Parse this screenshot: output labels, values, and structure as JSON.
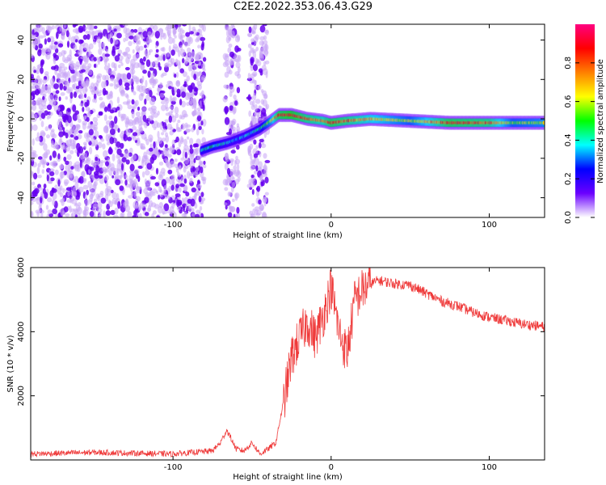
{
  "title": "C2E2.2022.353.06.43.G29",
  "chart_data": [
    {
      "type": "heatmap",
      "xlabel": "Height of straight line (km)",
      "ylabel": "Frequency (Hz)",
      "xlim": [
        -190,
        135
      ],
      "ylim": [
        -50,
        48
      ],
      "xticks": [
        -100,
        0,
        100
      ],
      "yticks": [
        -40,
        -20,
        0,
        20,
        40
      ],
      "grid": false,
      "colorbar": {
        "label": "Normalized spectral amplitude",
        "range": [
          0,
          1
        ],
        "ticks": [
          "0.0",
          "0.2",
          "0.4",
          "0.6",
          "0.8"
        ],
        "colormap": [
          "#ffffff",
          "#6a00ff",
          "#0000ff",
          "#00ffff",
          "#00ff00",
          "#ffff00",
          "#ff8000",
          "#ff0000",
          "#ff0080"
        ]
      },
      "ridge": {
        "x": [
          -82,
          -75,
          -65,
          -55,
          -45,
          -38,
          -33,
          -25,
          -15,
          -5,
          0,
          10,
          25,
          50,
          75,
          100,
          115,
          135
        ],
        "frequency": [
          -16,
          -14,
          -12,
          -9,
          -5,
          -1,
          2,
          2,
          0,
          -1,
          -2,
          -1,
          0,
          -1,
          -2,
          -2,
          -2,
          -2
        ],
        "amplitude": [
          0.4,
          0.45,
          0.35,
          0.35,
          0.4,
          0.6,
          0.85,
          0.9,
          0.8,
          0.75,
          0.85,
          0.8,
          0.7,
          0.55,
          0.85,
          0.8,
          0.55,
          0.6
        ]
      },
      "noise_regions": [
        [
          -190,
          -80
        ],
        [
          -67,
          -58
        ],
        [
          -52,
          -40
        ]
      ]
    },
    {
      "type": "line",
      "xlabel": "Height of straight line (km)",
      "ylabel": "SNR (10 * v/v)",
      "xlim": [
        -190,
        135
      ],
      "ylim": [
        0,
        6000
      ],
      "xticks": [
        -100,
        0,
        100
      ],
      "yticks": [
        2000,
        4000,
        6000
      ],
      "grid": false,
      "series": [
        {
          "color": "#ef3b3b",
          "x": [
            -190,
            -150,
            -100,
            -75,
            -70,
            -66,
            -60,
            -55,
            -50,
            -45,
            -40,
            -35,
            -30,
            -25,
            -20,
            -15,
            -10,
            -5,
            0,
            5,
            10,
            15,
            20,
            25,
            30,
            35,
            40,
            50,
            60,
            70,
            80,
            90,
            100,
            110,
            120,
            135
          ],
          "values": [
            150,
            200,
            150,
            250,
            500,
            900,
            300,
            250,
            500,
            150,
            300,
            500,
            1800,
            3200,
            3800,
            4300,
            3800,
            4500,
            5400,
            4000,
            3300,
            5000,
            5300,
            5500,
            5600,
            5550,
            5500,
            5450,
            5200,
            4950,
            4800,
            4600,
            4450,
            4350,
            4250,
            4150
          ]
        }
      ]
    }
  ]
}
